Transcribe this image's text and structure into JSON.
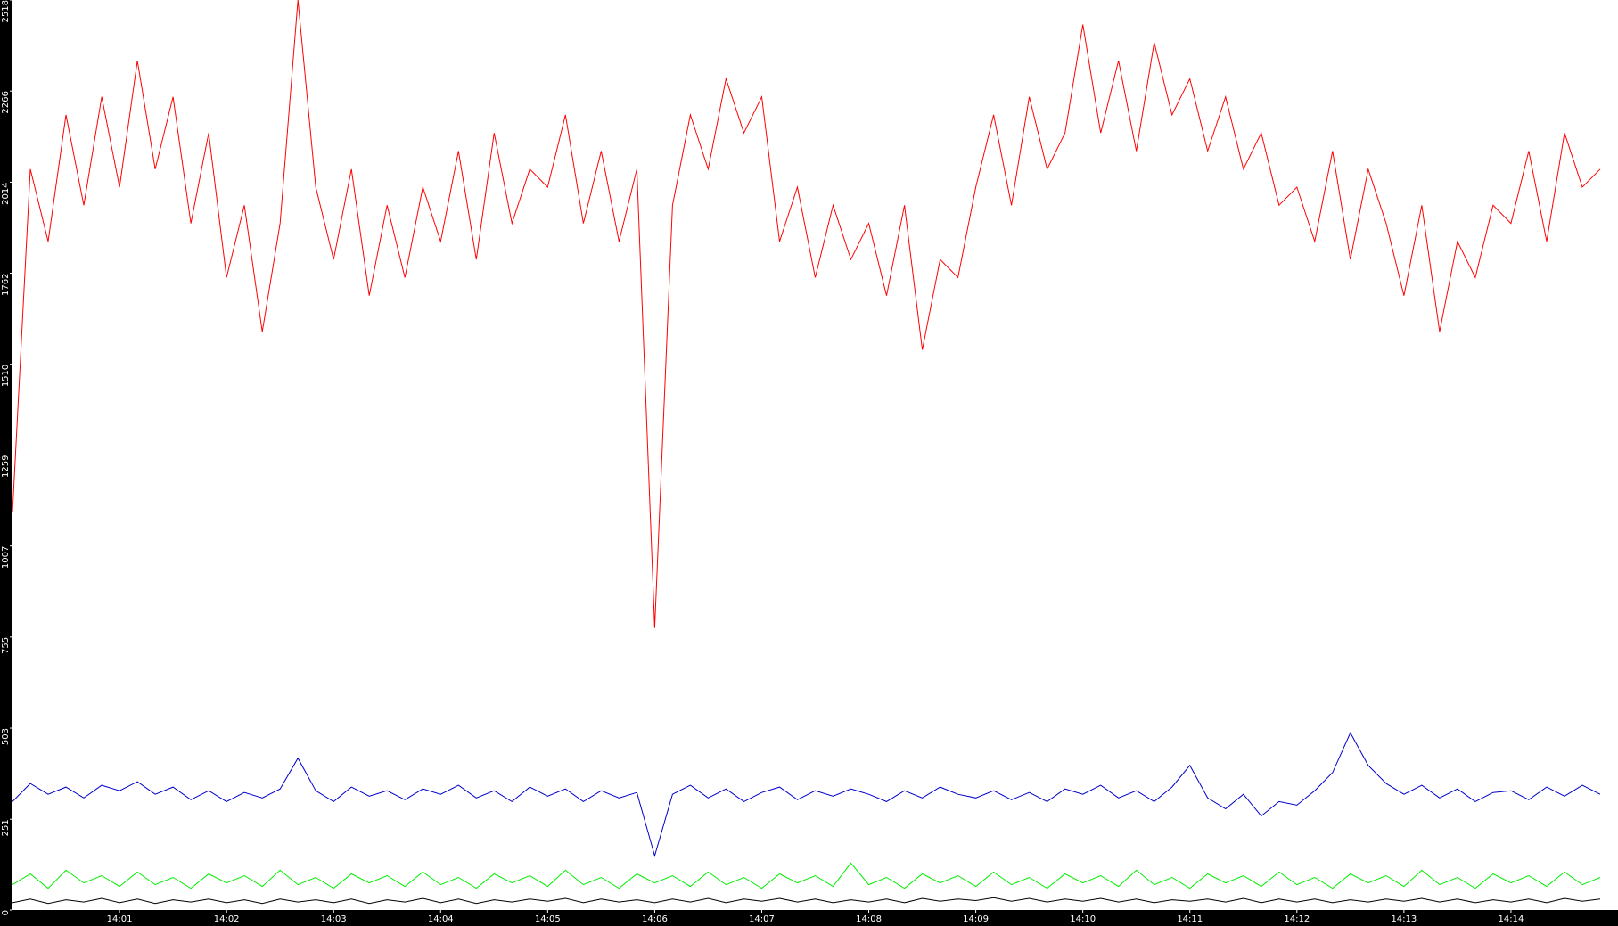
{
  "chart_data": {
    "type": "line",
    "x": [
      "14:00:00",
      "14:00:10",
      "14:00:20",
      "14:00:30",
      "14:00:40",
      "14:00:50",
      "14:01:00",
      "14:01:10",
      "14:01:20",
      "14:01:30",
      "14:01:40",
      "14:01:50",
      "14:02:00",
      "14:02:10",
      "14:02:20",
      "14:02:30",
      "14:02:40",
      "14:02:50",
      "14:03:00",
      "14:03:10",
      "14:03:20",
      "14:03:30",
      "14:03:40",
      "14:03:50",
      "14:04:00",
      "14:04:10",
      "14:04:20",
      "14:04:30",
      "14:04:40",
      "14:04:50",
      "14:05:00",
      "14:05:10",
      "14:05:20",
      "14:05:30",
      "14:05:40",
      "14:05:50",
      "14:06:00",
      "14:06:10",
      "14:06:20",
      "14:06:30",
      "14:06:40",
      "14:06:50",
      "14:07:00",
      "14:07:10",
      "14:07:20",
      "14:07:30",
      "14:07:40",
      "14:07:50",
      "14:08:00",
      "14:08:10",
      "14:08:20",
      "14:08:30",
      "14:08:40",
      "14:08:50",
      "14:09:00",
      "14:09:10",
      "14:09:20",
      "14:09:30",
      "14:09:40",
      "14:09:50",
      "14:10:00",
      "14:10:10",
      "14:10:20",
      "14:10:30",
      "14:10:40",
      "14:10:50",
      "14:11:00",
      "14:11:10",
      "14:11:20",
      "14:11:30",
      "14:11:40",
      "14:11:50",
      "14:12:00",
      "14:12:10",
      "14:12:20",
      "14:12:30",
      "14:12:40",
      "14:12:50",
      "14:13:00",
      "14:13:10",
      "14:13:20",
      "14:13:30",
      "14:13:40",
      "14:13:50",
      "14:14:00",
      "14:14:10",
      "14:14:20",
      "14:14:30",
      "14:14:40",
      "14:14:50"
    ],
    "series": [
      {
        "color": "#ff0000",
        "values": [
          1100,
          2050,
          1850,
          2200,
          1950,
          2250,
          2000,
          2350,
          2050,
          2250,
          1900,
          2150,
          1750,
          1950,
          1600,
          1900,
          2518,
          2000,
          1800,
          2050,
          1700,
          1950,
          1750,
          2000,
          1850,
          2100,
          1800,
          2150,
          1900,
          2050,
          2000,
          2200,
          1900,
          2100,
          1850,
          2050,
          780,
          1950,
          2200,
          2050,
          2300,
          2150,
          2250,
          1850,
          2000,
          1750,
          1950,
          1800,
          1900,
          1700,
          1950,
          1550,
          1800,
          1750,
          2000,
          2200,
          1950,
          2250,
          2050,
          2150,
          2450,
          2150,
          2350,
          2100,
          2400,
          2200,
          2300,
          2100,
          2250,
          2050,
          2150,
          1950,
          2000,
          1850,
          2100,
          1800,
          2050,
          1900,
          1700,
          1950,
          1600,
          1850,
          1750,
          1950,
          1900,
          2100,
          1850,
          2150,
          2000,
          2050
        ]
      },
      {
        "color": "#0000cc",
        "values": [
          300,
          350,
          320,
          340,
          310,
          345,
          330,
          355,
          320,
          340,
          305,
          330,
          300,
          325,
          310,
          335,
          420,
          330,
          300,
          340,
          315,
          330,
          305,
          335,
          320,
          345,
          310,
          330,
          300,
          340,
          315,
          335,
          300,
          330,
          310,
          325,
          150,
          320,
          345,
          310,
          335,
          300,
          325,
          340,
          305,
          330,
          315,
          335,
          320,
          300,
          330,
          310,
          340,
          320,
          310,
          330,
          305,
          325,
          300,
          335,
          320,
          345,
          310,
          330,
          300,
          340,
          400,
          310,
          280,
          320,
          260,
          300,
          290,
          330,
          380,
          490,
          400,
          350,
          320,
          345,
          310,
          335,
          300,
          325,
          330,
          305,
          340,
          315,
          345,
          320
        ]
      },
      {
        "color": "#00ee00",
        "values": [
          70,
          100,
          60,
          110,
          75,
          95,
          65,
          105,
          70,
          90,
          60,
          100,
          75,
          95,
          65,
          110,
          70,
          90,
          60,
          100,
          75,
          95,
          65,
          105,
          70,
          90,
          60,
          100,
          75,
          95,
          65,
          110,
          70,
          90,
          60,
          100,
          75,
          95,
          65,
          105,
          70,
          90,
          60,
          100,
          75,
          95,
          65,
          130,
          70,
          90,
          60,
          100,
          75,
          95,
          65,
          105,
          70,
          90,
          60,
          100,
          75,
          95,
          65,
          110,
          70,
          90,
          60,
          100,
          75,
          95,
          65,
          105,
          70,
          90,
          60,
          100,
          75,
          95,
          65,
          110,
          70,
          90,
          60,
          100,
          75,
          95,
          65,
          105,
          70,
          90
        ]
      },
      {
        "color": "#000000",
        "values": [
          20,
          30,
          18,
          28,
          22,
          32,
          20,
          30,
          18,
          28,
          22,
          30,
          20,
          28,
          18,
          30,
          22,
          28,
          20,
          30,
          18,
          28,
          22,
          32,
          20,
          30,
          18,
          28,
          22,
          30,
          24,
          32,
          20,
          30,
          22,
          28,
          20,
          30,
          22,
          32,
          20,
          30,
          24,
          32,
          22,
          30,
          20,
          28,
          22,
          30,
          20,
          32,
          24,
          30,
          26,
          34,
          24,
          32,
          22,
          30,
          24,
          32,
          22,
          30,
          20,
          28,
          24,
          30,
          22,
          32,
          20,
          30,
          22,
          30,
          20,
          28,
          22,
          30,
          24,
          32,
          22,
          30,
          20,
          28,
          22,
          30,
          20,
          32,
          24,
          30
        ]
      }
    ],
    "xlim": [
      "14:00:00",
      "14:15:00"
    ],
    "xticks": [
      "14:01",
      "14:02",
      "14:03",
      "14:04",
      "14:05",
      "14:06",
      "14:07",
      "14:08",
      "14:09",
      "14:10",
      "14:11",
      "14:12",
      "14:13",
      "14:14"
    ],
    "ylim": [
      0,
      2518
    ],
    "yticks": [
      0,
      251,
      503,
      755,
      1007,
      1259,
      1510,
      1762,
      2014,
      2266,
      2518
    ]
  }
}
